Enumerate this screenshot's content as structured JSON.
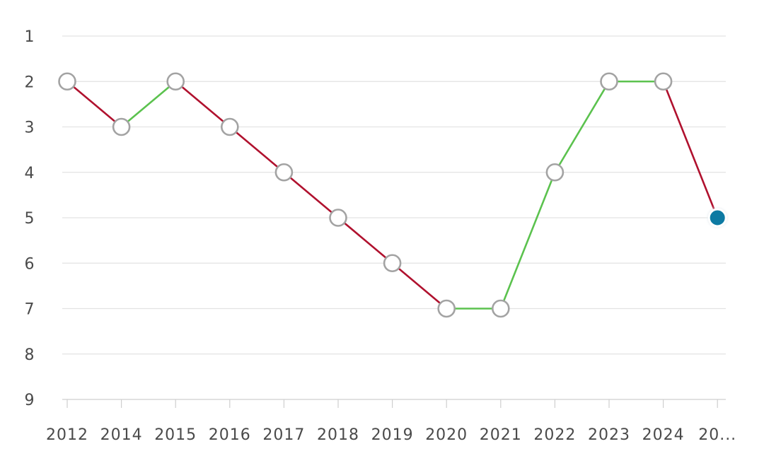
{
  "chart_data": {
    "type": "line",
    "categories": [
      "2012",
      "2014",
      "2015",
      "2016",
      "2017",
      "2018",
      "2019",
      "2020",
      "2021",
      "2022",
      "2023",
      "2024",
      "20..."
    ],
    "series": [
      {
        "values": [
          2,
          3,
          2,
          3,
          4,
          5,
          6,
          7,
          7,
          4,
          2,
          2,
          5
        ]
      }
    ],
    "y_ticks": [
      "1",
      "2",
      "3",
      "4",
      "5",
      "6",
      "7",
      "8",
      "9"
    ],
    "ylim": [
      1,
      9
    ],
    "y_inverted": true,
    "grid": true,
    "colors": {
      "worse": "#b0112e",
      "better": "#5bc24e",
      "marker_stroke": "#a3a3a3",
      "active_marker": "#0a7aa3",
      "gridline": "#e3e3e3",
      "axis": "#cfcfcf",
      "label": "#4a4a4a"
    }
  }
}
